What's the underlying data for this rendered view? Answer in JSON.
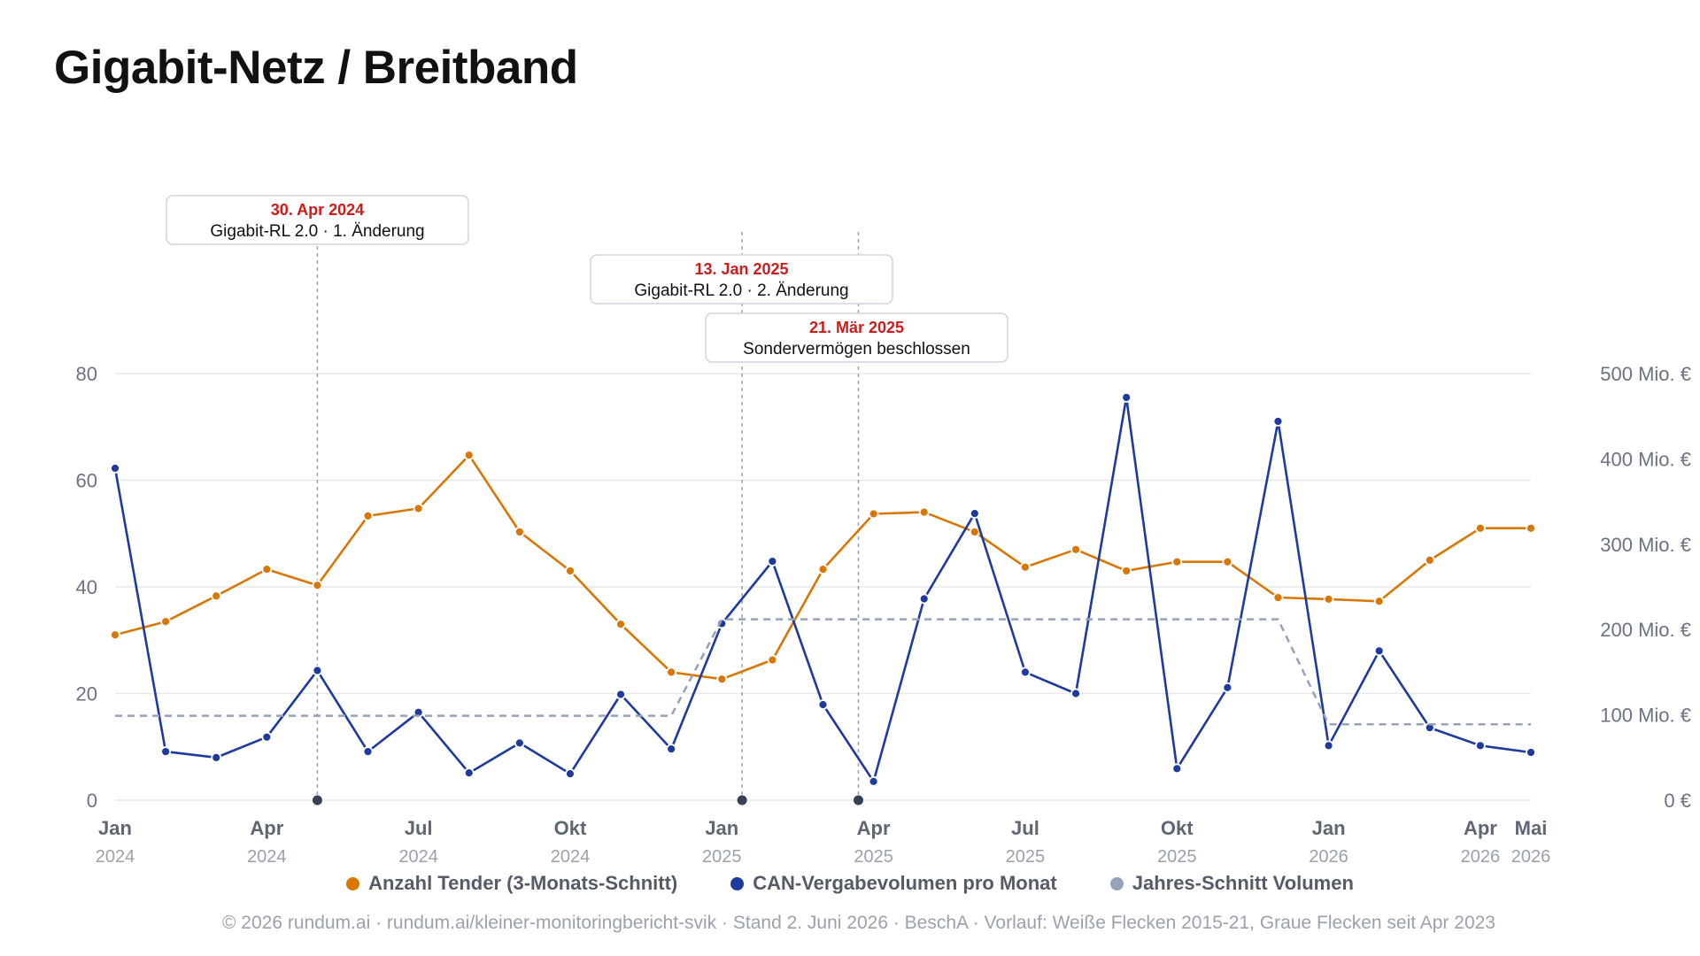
{
  "title": "Gigabit-Netz / Breitband",
  "footer": "© 2026 rundum.ai · rundum.ai/kleiner-monitoringbericht-svik · Stand 2. Juni 2026 · BeschA · Vorlauf: Weiße Flecken 2015-21, Graue Flecken seit Apr 2023",
  "legend": {
    "tender": "Anzahl Tender (3-Monats-Schnitt)",
    "volume": "CAN-Vergabevolumen pro Monat",
    "avg": "Jahres-Schnitt Volumen"
  },
  "colors": {
    "tender": "#d97706",
    "volume": "#1e3a9f",
    "avg": "#94a3b8",
    "annotation_date": "#d11a1a",
    "axis_text": "#6b7280"
  },
  "chart_data": {
    "type": "line",
    "x_ticks": [
      {
        "index": 0,
        "month": "Jan",
        "year": "2024"
      },
      {
        "index": 3,
        "month": "Apr",
        "year": "2024"
      },
      {
        "index": 6,
        "month": "Jul",
        "year": "2024"
      },
      {
        "index": 9,
        "month": "Okt",
        "year": "2024"
      },
      {
        "index": 12,
        "month": "Jan",
        "year": "2025"
      },
      {
        "index": 15,
        "month": "Apr",
        "year": "2025"
      },
      {
        "index": 18,
        "month": "Jul",
        "year": "2025"
      },
      {
        "index": 21,
        "month": "Okt",
        "year": "2025"
      },
      {
        "index": 24,
        "month": "Jan",
        "year": "2026"
      },
      {
        "index": 27,
        "month": "Apr",
        "year": "2026"
      },
      {
        "index": 28,
        "month": "Mai",
        "year": "2026"
      }
    ],
    "y_left": {
      "ticks": [
        "0",
        "20",
        "40",
        "60",
        "80"
      ],
      "range": [
        0,
        80
      ]
    },
    "y_right": {
      "ticks": [
        "0 €",
        "100 Mio. €",
        "200 Mio. €",
        "300 Mio. €",
        "400 Mio. €",
        "500 Mio. €"
      ],
      "range": [
        0,
        500
      ]
    },
    "series": [
      {
        "name": "Anzahl Tender (3-Monats-Schnitt)",
        "axis": "left",
        "values": [
          31,
          33.5,
          38.3,
          43.3,
          40.3,
          53.3,
          54.7,
          64.7,
          50.3,
          43,
          33,
          24,
          22.7,
          26.3,
          43.3,
          53.7,
          54,
          50.3,
          43.7,
          47,
          43,
          44.7,
          44.7,
          38,
          37.7,
          37.3,
          45,
          51,
          51
        ]
      },
      {
        "name": "CAN-Vergabevolumen pro Monat",
        "axis": "right",
        "values": [
          389,
          57,
          50,
          74,
          152,
          57,
          103,
          32,
          67,
          31,
          124,
          60,
          207,
          280,
          112,
          22,
          236,
          336,
          150,
          125,
          472,
          37,
          132,
          444,
          64,
          175,
          85,
          64,
          56
        ]
      },
      {
        "name": "Jahres-Schnitt Volumen",
        "axis": "right",
        "values": [
          99,
          99,
          99,
          99,
          99,
          99,
          99,
          99,
          99,
          99,
          99,
          99,
          212,
          212,
          212,
          212,
          212,
          212,
          212,
          212,
          212,
          212,
          212,
          212,
          89,
          89,
          89,
          89,
          89
        ]
      }
    ],
    "annotations": [
      {
        "date": "30. Apr 2024",
        "text": "Gigabit-RL 2.0 · 1. Änderung",
        "x": 4
      },
      {
        "date": "13. Jan 2025",
        "text": "Gigabit-RL 2.0 · 2. Änderung",
        "x": 12.4
      },
      {
        "date": "21. Mär 2025",
        "text": "Sondervermögen beschlossen",
        "x": 14.7
      }
    ]
  }
}
